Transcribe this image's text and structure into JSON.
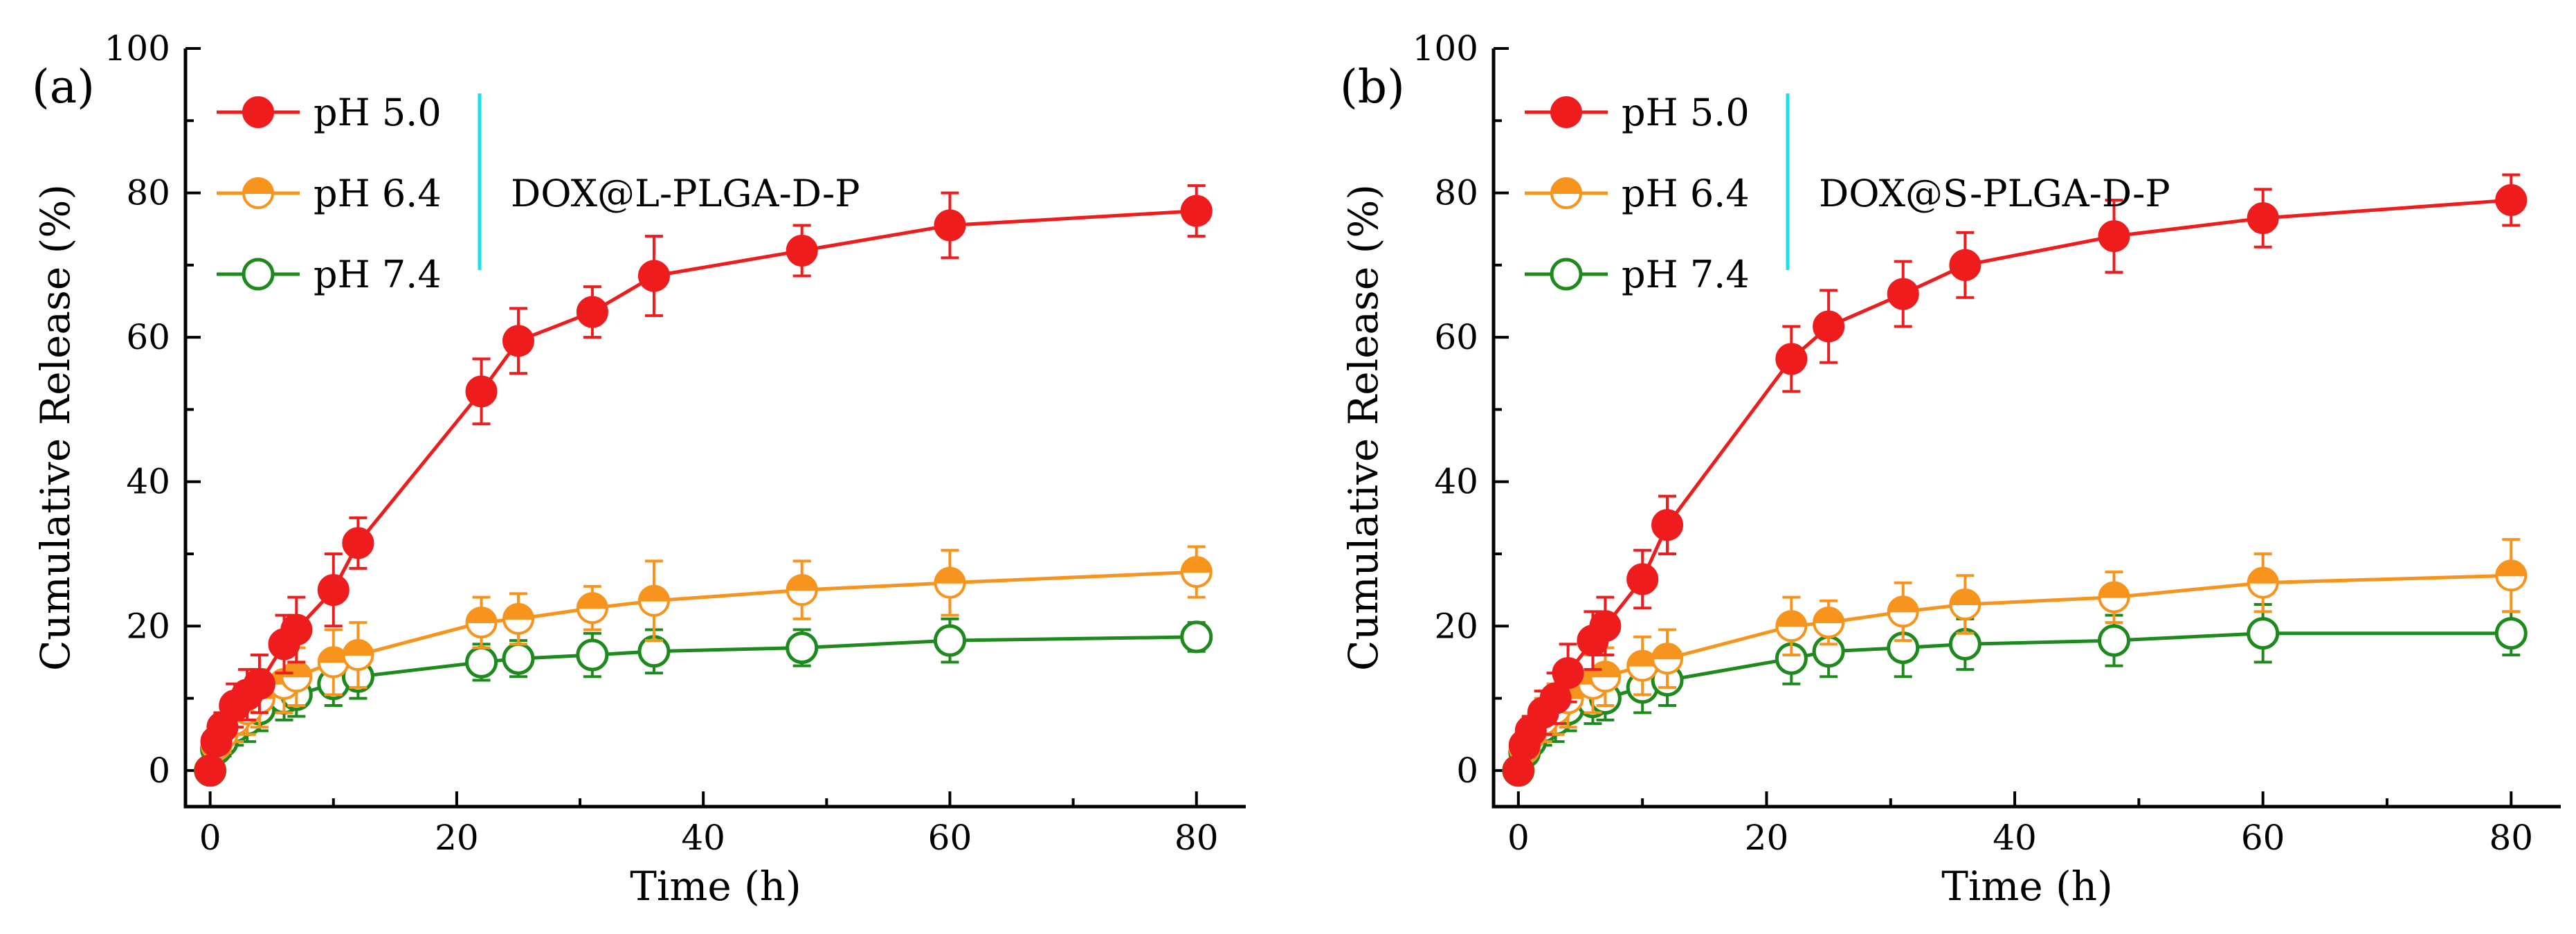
{
  "chart_data": [
    {
      "type": "line",
      "panel_label": "(a)",
      "sample_label": "DOX@L-PLGA-D-P",
      "xlabel": "Time (h)",
      "ylabel": "Cumulative Release (%)",
      "xlim": [
        -2,
        84
      ],
      "ylim": [
        -5,
        100
      ],
      "xticks": [
        0,
        20,
        40,
        60,
        80
      ],
      "yticks": [
        0,
        20,
        40,
        60,
        80,
        100
      ],
      "legend_position": "top-left",
      "x": [
        0,
        0.5,
        1,
        2,
        3,
        4,
        6,
        7,
        10,
        12,
        22,
        25,
        31,
        36,
        48,
        60,
        80
      ],
      "series": [
        {
          "name": "pH 5.0",
          "color": "#ee1c1c",
          "marker": "filled-circle",
          "values": [
            0,
            4,
            6,
            9,
            10.5,
            12,
            17.5,
            19.5,
            25,
            31.5,
            52.5,
            59.5,
            63.5,
            68.5,
            72,
            75.5,
            77.5
          ],
          "errors": [
            0,
            1.5,
            2,
            3,
            3.5,
            4,
            4,
            4.5,
            5,
            3.5,
            4.5,
            4.5,
            3.5,
            5.5,
            3.5,
            4.5,
            3.5
          ]
        },
        {
          "name": "pH 6.4",
          "color": "#f7941d",
          "marker": "half-filled-circle",
          "values": [
            0,
            3.5,
            5,
            7,
            8.5,
            10,
            12,
            13,
            15,
            16,
            20.5,
            21,
            22.5,
            23.5,
            25,
            26,
            27.5
          ],
          "errors": [
            0,
            1.5,
            2.5,
            3,
            3.5,
            4,
            4,
            4,
            4.5,
            4.5,
            3.5,
            3.5,
            3,
            5.5,
            4,
            4.5,
            3.5
          ]
        },
        {
          "name": "pH 7.4",
          "color": "#1e8a1e",
          "marker": "open-circle",
          "values": [
            0,
            3,
            4,
            6,
            7,
            8.5,
            10,
            10.5,
            12,
            13,
            15,
            15.5,
            16,
            16.5,
            17,
            18,
            18.5
          ],
          "errors": [
            0,
            1.5,
            2,
            2.5,
            3,
            3,
            3,
            3,
            3,
            3,
            2.5,
            2.5,
            3,
            3,
            2.5,
            3,
            2
          ]
        }
      ]
    },
    {
      "type": "line",
      "panel_label": "(b)",
      "sample_label": "DOX@S-PLGA-D-P",
      "xlabel": "Time (h)",
      "ylabel": "Cumulative Release (%)",
      "xlim": [
        -2,
        84
      ],
      "ylim": [
        -5,
        100
      ],
      "xticks": [
        0,
        20,
        40,
        60,
        80
      ],
      "yticks": [
        0,
        20,
        40,
        60,
        80,
        100
      ],
      "legend_position": "top-left",
      "x": [
        0,
        0.5,
        1,
        2,
        3,
        4,
        6,
        7,
        10,
        12,
        22,
        25,
        31,
        36,
        48,
        60,
        80
      ],
      "series": [
        {
          "name": "pH 5.0",
          "color": "#ee1c1c",
          "marker": "filled-circle",
          "values": [
            0,
            3.5,
            5.5,
            8,
            10,
            13.5,
            18,
            20,
            26.5,
            34,
            57,
            61.5,
            66,
            70,
            74,
            76.5,
            79
          ],
          "errors": [
            0,
            1.5,
            2,
            3,
            3.5,
            4,
            4,
            4,
            4,
            4,
            4.5,
            5,
            4.5,
            4.5,
            5,
            4,
            3.5
          ]
        },
        {
          "name": "pH 6.4",
          "color": "#f7941d",
          "marker": "half-filled-circle",
          "values": [
            0,
            3,
            5,
            7,
            8.5,
            10,
            12,
            13,
            14.5,
            15.5,
            20,
            20.5,
            22,
            23,
            24,
            26,
            27
          ],
          "errors": [
            0,
            1.5,
            2.5,
            3,
            3.5,
            4,
            4,
            4,
            4,
            4,
            4,
            3,
            4,
            4,
            3.5,
            4,
            5
          ]
        },
        {
          "name": "pH 7.4",
          "color": "#1e8a1e",
          "marker": "open-circle",
          "values": [
            0,
            2.5,
            4,
            6,
            7,
            8.5,
            9.5,
            10,
            11.5,
            12.5,
            15.5,
            16.5,
            17,
            17.5,
            18,
            19,
            19
          ],
          "errors": [
            0,
            1.5,
            2,
            2.5,
            3,
            3,
            3,
            3,
            3.5,
            3.5,
            3.5,
            3.5,
            4,
            3.5,
            3.5,
            4,
            3
          ]
        }
      ]
    }
  ]
}
